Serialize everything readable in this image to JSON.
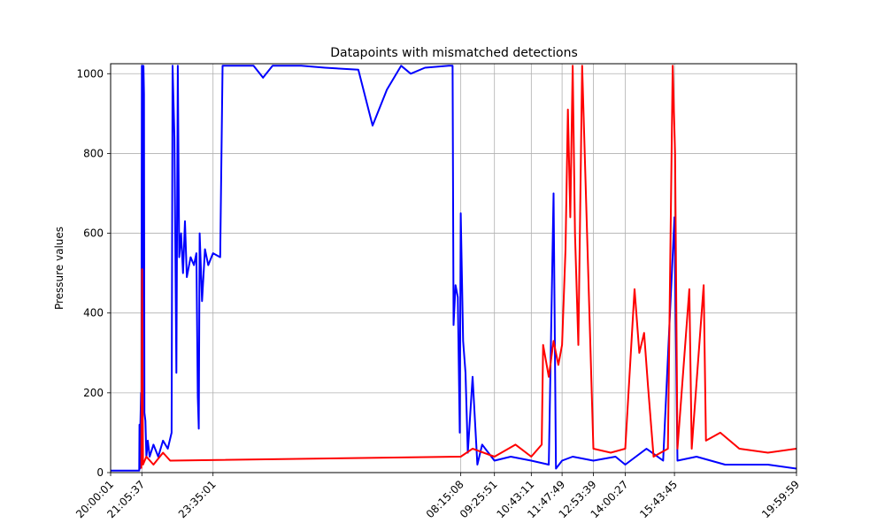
{
  "chart_data": {
    "type": "line",
    "title": "Datapoints with mismatched detections",
    "xlabel": "",
    "ylabel": "Pressure values",
    "x_ticks": [
      "20:00:01",
      "21:05:37",
      "23:35:01",
      "08:15:08",
      "09:25:51",
      "10:43:11",
      "11:47:49",
      "12:53:39",
      "14:00:27",
      "15:43:45",
      "19:59:59"
    ],
    "y_ticks": [
      0,
      200,
      400,
      600,
      800,
      1000
    ],
    "ylim": [
      0,
      1025
    ],
    "grid": true,
    "series": [
      {
        "color": "#0000ff",
        "points": [
          [
            "20:00:01",
            5
          ],
          [
            "20:30:00",
            5
          ],
          [
            "21:00:00",
            5
          ],
          [
            "21:00:30",
            120
          ],
          [
            "21:01:30",
            10
          ],
          [
            "21:02:30",
            118
          ],
          [
            "21:04:00",
            200
          ],
          [
            "21:04:30",
            60
          ],
          [
            "21:05:37",
            1020
          ],
          [
            "21:06:30",
            40
          ],
          [
            "21:07:30",
            1010
          ],
          [
            "21:09:00",
            1020
          ],
          [
            "21:10:00",
            950
          ],
          [
            "21:11:00",
            150
          ],
          [
            "21:13:00",
            130
          ],
          [
            "21:15:00",
            40
          ],
          [
            "21:18:00",
            80
          ],
          [
            "21:22:00",
            40
          ],
          [
            "21:30:00",
            70
          ],
          [
            "21:40:00",
            40
          ],
          [
            "21:50:00",
            80
          ],
          [
            "22:00:00",
            60
          ],
          [
            "22:08:00",
            100
          ],
          [
            "22:10:00",
            1020
          ],
          [
            "22:14:00",
            840
          ],
          [
            "22:18:00",
            250
          ],
          [
            "22:21:00",
            1020
          ],
          [
            "22:24:00",
            540
          ],
          [
            "22:28:00",
            600
          ],
          [
            "22:32:00",
            500
          ],
          [
            "22:36:00",
            630
          ],
          [
            "22:40:00",
            490
          ],
          [
            "22:48:00",
            540
          ],
          [
            "22:55:00",
            520
          ],
          [
            "23:00:00",
            550
          ],
          [
            "23:03:00",
            190
          ],
          [
            "23:05:00",
            110
          ],
          [
            "23:07:00",
            600
          ],
          [
            "23:12:00",
            430
          ],
          [
            "23:18:00",
            560
          ],
          [
            "23:25:00",
            520
          ],
          [
            "23:35:01",
            550
          ],
          [
            "23:50:00",
            540
          ],
          [
            "23:55:00",
            1020
          ],
          [
            "01:00:00",
            1020
          ],
          [
            "01:20:00",
            990
          ],
          [
            "01:40:00",
            1020
          ],
          [
            "02:40:00",
            1020
          ],
          [
            "03:30:00",
            1015
          ],
          [
            "04:40:00",
            1010
          ],
          [
            "05:10:00",
            870
          ],
          [
            "05:40:00",
            960
          ],
          [
            "06:10:00",
            1020
          ],
          [
            "06:30:00",
            1000
          ],
          [
            "07:00:00",
            1015
          ],
          [
            "07:50:00",
            1020
          ],
          [
            "07:58:00",
            1020
          ],
          [
            "08:00:00",
            370
          ],
          [
            "08:04:00",
            470
          ],
          [
            "08:09:00",
            440
          ],
          [
            "08:13:00",
            100
          ],
          [
            "08:15:08",
            650
          ],
          [
            "08:20:00",
            330
          ],
          [
            "08:25:00",
            250
          ],
          [
            "08:30:00",
            50
          ],
          [
            "08:40:00",
            240
          ],
          [
            "08:50:00",
            20
          ],
          [
            "09:00:00",
            70
          ],
          [
            "09:25:51",
            30
          ],
          [
            "10:00:00",
            40
          ],
          [
            "10:43:11",
            30
          ],
          [
            "11:20:00",
            20
          ],
          [
            "11:30:00",
            700
          ],
          [
            "11:35:00",
            10
          ],
          [
            "11:47:49",
            30
          ],
          [
            "12:10:00",
            40
          ],
          [
            "12:53:39",
            30
          ],
          [
            "13:40:00",
            40
          ],
          [
            "14:00:27",
            20
          ],
          [
            "14:45:00",
            60
          ],
          [
            "15:20:00",
            30
          ],
          [
            "15:43:45",
            640
          ],
          [
            "15:50:00",
            30
          ],
          [
            "16:30:00",
            40
          ],
          [
            "17:30:00",
            20
          ],
          [
            "19:00:00",
            20
          ],
          [
            "19:59:59",
            10
          ]
        ]
      },
      {
        "color": "#ff0000",
        "points": [
          [
            "21:04:30",
            10
          ],
          [
            "21:06:00",
            510
          ],
          [
            "21:08:00",
            20
          ],
          [
            "21:15:00",
            40
          ],
          [
            "21:30:00",
            20
          ],
          [
            "21:50:00",
            50
          ],
          [
            "22:05:00",
            30
          ],
          [
            "08:15:08",
            40
          ],
          [
            "08:40:00",
            60
          ],
          [
            "09:25:51",
            40
          ],
          [
            "10:10:00",
            70
          ],
          [
            "10:43:11",
            40
          ],
          [
            "11:05:00",
            70
          ],
          [
            "11:08:00",
            320
          ],
          [
            "11:20:00",
            240
          ],
          [
            "11:30:00",
            330
          ],
          [
            "11:40:00",
            270
          ],
          [
            "11:47:49",
            320
          ],
          [
            "11:55:00",
            560
          ],
          [
            "12:00:00",
            910
          ],
          [
            "12:05:00",
            640
          ],
          [
            "12:10:00",
            1020
          ],
          [
            "12:15:00",
            600
          ],
          [
            "12:22:00",
            320
          ],
          [
            "12:30:00",
            1020
          ],
          [
            "12:53:39",
            60
          ],
          [
            "13:30:00",
            50
          ],
          [
            "14:00:27",
            60
          ],
          [
            "14:20:00",
            460
          ],
          [
            "14:30:00",
            300
          ],
          [
            "14:40:00",
            350
          ],
          [
            "14:48:00",
            220
          ],
          [
            "15:00:00",
            40
          ],
          [
            "15:30:00",
            60
          ],
          [
            "15:40:00",
            1020
          ],
          [
            "15:45:00",
            800
          ],
          [
            "15:50:00",
            60
          ],
          [
            "16:15:00",
            460
          ],
          [
            "16:20:00",
            60
          ],
          [
            "16:45:00",
            470
          ],
          [
            "16:50:00",
            80
          ],
          [
            "17:20:00",
            100
          ],
          [
            "18:00:00",
            60
          ],
          [
            "19:00:00",
            50
          ],
          [
            "19:59:59",
            60
          ]
        ]
      }
    ]
  }
}
